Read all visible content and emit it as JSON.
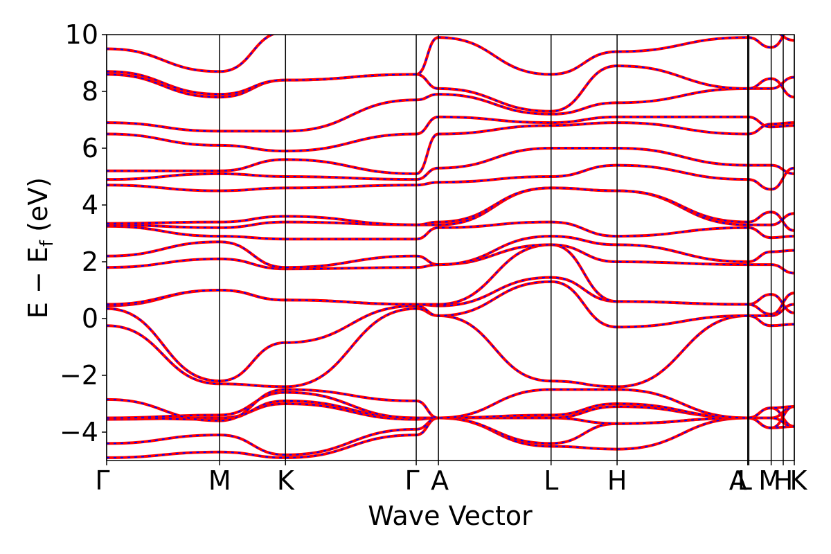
{
  "chart_data": {
    "type": "line",
    "xlabel": "Wave Vector",
    "ylabel_main": "E − E",
    "ylabel_sub": "f",
    "ylabel_unit": " (eV)",
    "ylim": [
      -5,
      10
    ],
    "yticks": [
      -4,
      -2,
      0,
      2,
      4,
      6,
      8,
      10
    ],
    "ytick_labels": [
      "−4",
      "−2",
      "0",
      "2",
      "4",
      "6",
      "8",
      "10"
    ],
    "xlim": [
      0,
      1
    ],
    "kpoints": [
      {
        "label": "Γ",
        "x": 0.0
      },
      {
        "label": "M",
        "x": 0.1644
      },
      {
        "label": "K",
        "x": 0.2601
      },
      {
        "label": "Γ",
        "x": 0.4502
      },
      {
        "label": "A",
        "x": 0.4825
      },
      {
        "label": "L",
        "x": 0.6463
      },
      {
        "label": "H",
        "x": 0.7423
      },
      {
        "label": "A",
        "x": 0.9323
      },
      {
        "label": "L",
        "x": 0.9339
      },
      {
        "label": "M",
        "x": 0.9664
      },
      {
        "label": "H",
        "x": 0.9839
      },
      {
        "label": "K",
        "x": 1.0
      }
    ],
    "series_colors": {
      "dft": "#ff0000",
      "fit": "#0000ff"
    },
    "bands_anchor_y": [
      [
        -4.9,
        -4.7,
        -4.9,
        -4.1,
        -3.5,
        -4.5,
        -4.6,
        -3.5
      ],
      [
        -4.4,
        -4.1,
        -4.8,
        -3.9,
        -3.5,
        -4.4,
        -3.7,
        -3.5
      ],
      [
        -3.55,
        -3.5,
        -3.0,
        -3.55,
        -3.5,
        -3.5,
        -3.7,
        -3.5
      ],
      [
        -3.5,
        -3.55,
        -2.9,
        -3.5,
        -3.5,
        -3.5,
        -3.1,
        -3.5
      ],
      [
        -3.5,
        -3.4,
        -2.6,
        -3.5,
        -3.5,
        -3.4,
        -3.0,
        -3.5
      ],
      [
        -2.85,
        -3.6,
        -2.5,
        -2.9,
        -3.5,
        -2.5,
        -2.5,
        -3.5
      ],
      [
        -0.25,
        -2.3,
        -2.4,
        0.35,
        0.1,
        -2.2,
        -2.4,
        0.1
      ],
      [
        0.35,
        -2.2,
        -0.85,
        0.45,
        0.1,
        1.3,
        -0.3,
        0.1
      ],
      [
        0.45,
        1.0,
        0.65,
        0.5,
        0.45,
        1.45,
        0.6,
        0.5
      ],
      [
        0.5,
        1.0,
        0.65,
        0.5,
        0.5,
        2.6,
        0.6,
        0.5
      ],
      [
        1.8,
        2.1,
        1.75,
        1.8,
        1.9,
        2.6,
        2.0,
        1.9
      ],
      [
        2.2,
        2.7,
        1.8,
        2.2,
        1.9,
        2.9,
        2.6,
        2.0
      ],
      [
        3.25,
        2.9,
        2.8,
        2.8,
        3.2,
        3.4,
        2.9,
        3.2
      ],
      [
        3.3,
        3.2,
        3.4,
        3.3,
        3.3,
        4.6,
        4.5,
        3.3
      ],
      [
        3.35,
        3.4,
        3.6,
        3.3,
        3.4,
        4.6,
        4.5,
        3.4
      ],
      [
        4.7,
        4.5,
        4.6,
        4.7,
        4.8,
        5.0,
        5.4,
        4.9
      ],
      [
        4.9,
        5.1,
        5.0,
        4.9,
        5.3,
        6.0,
        6.0,
        5.4
      ],
      [
        5.2,
        5.2,
        5.6,
        5.1,
        6.5,
        6.8,
        6.9,
        6.5
      ],
      [
        6.5,
        6.1,
        5.9,
        6.5,
        7.1,
        6.9,
        7.1,
        7.1
      ],
      [
        6.9,
        6.6,
        6.6,
        7.7,
        7.9,
        7.2,
        7.6,
        8.1
      ],
      [
        8.6,
        7.8,
        8.4,
        8.6,
        8.1,
        7.3,
        8.9,
        8.1
      ],
      [
        8.7,
        7.9,
        8.4,
        8.6,
        9.9,
        8.6,
        9.4,
        9.9
      ],
      [
        9.5,
        8.7,
        10.1,
        10.1,
        10.1,
        10.1,
        10.1,
        10.1
      ]
    ]
  }
}
